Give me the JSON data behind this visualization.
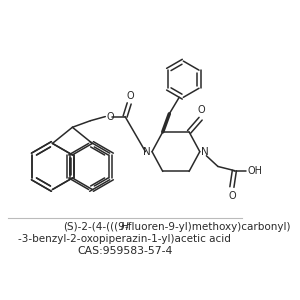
{
  "background_color": "#ffffff",
  "line_color": "#2a2a2a",
  "line_width": 1.1,
  "font_size_text": 7.5,
  "font_size_cas": 7.8,
  "text_line1a": "(S)-2-(4-(((9",
  "text_line1b": "H",
  "text_line1c": "-fluoren-9-yl)methoxy)carbonyl)",
  "text_line2": "-3-benzyl-2-oxopiperazin-1-yl)acetic acid",
  "text_line3": "CAS:959583-57-4"
}
